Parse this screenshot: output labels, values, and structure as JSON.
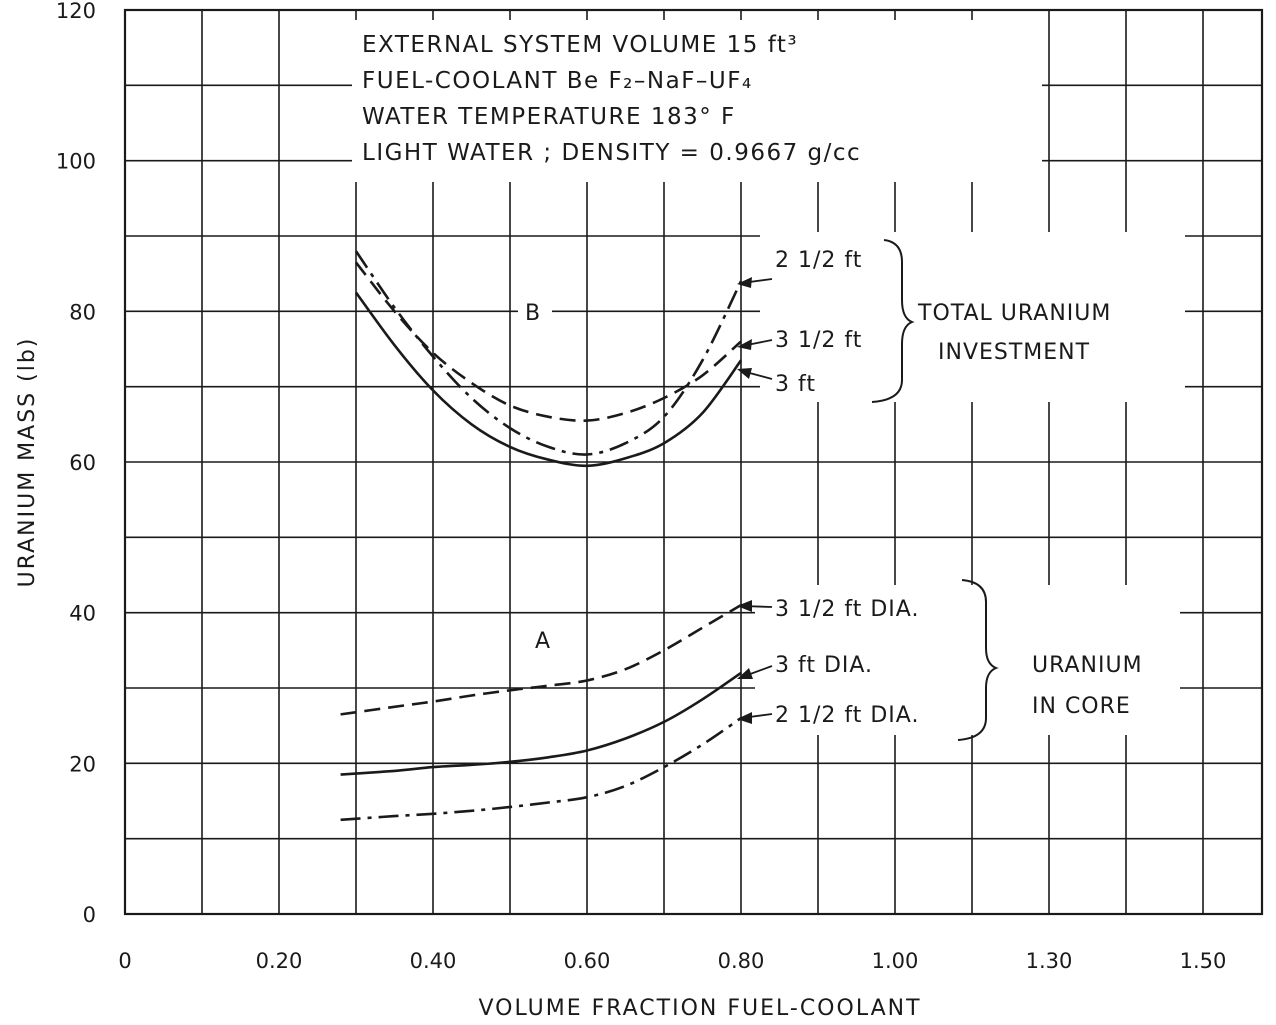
{
  "chart_data": {
    "type": "line",
    "xlabel": "VOLUME FRACTION FUEL-COOLANT",
    "ylabel": "URANIUM MASS (lb)",
    "ylim": [
      0,
      120
    ],
    "yticks": [
      0,
      20,
      40,
      60,
      80,
      100,
      120
    ],
    "xtick_labels": [
      "0",
      "0.20",
      "0.40",
      "0.60",
      "0.80",
      "1.00",
      "1.30",
      "1.50"
    ],
    "grid": true,
    "annotation_lines": [
      "EXTERNAL SYSTEM VOLUME 15 ft³",
      "FUEL-COOLANT Be F₂–NaF–UF₄",
      "WATER TEMPERATURE 183° F",
      "LIGHT WATER ; DENSITY = 0.9667 g/cc"
    ],
    "groups": [
      {
        "letter": "B",
        "label_lines": [
          "TOTAL URANIUM",
          "INVESTMENT"
        ]
      },
      {
        "letter": "A",
        "label_lines": [
          "URANIUM",
          "IN CORE"
        ]
      }
    ],
    "series": [
      {
        "name": "2 1/2 ft",
        "group": "B",
        "style": "dashdot",
        "x": [
          0.3,
          0.35,
          0.4,
          0.45,
          0.5,
          0.55,
          0.6,
          0.65,
          0.7,
          0.75,
          0.8
        ],
        "y": [
          88,
          80.5,
          74,
          68.5,
          64.5,
          62,
          61,
          62.5,
          66,
          73.5,
          84
        ]
      },
      {
        "name": "3 1/2 ft",
        "group": "B",
        "style": "dashed",
        "x": [
          0.3,
          0.35,
          0.4,
          0.45,
          0.5,
          0.55,
          0.6,
          0.65,
          0.7,
          0.75,
          0.8
        ],
        "y": [
          86.5,
          80,
          74.5,
          70.5,
          67.5,
          66,
          65.5,
          66.5,
          68.5,
          71.5,
          76
        ]
      },
      {
        "name": "3 ft",
        "group": "B",
        "style": "solid",
        "x": [
          0.3,
          0.35,
          0.4,
          0.45,
          0.5,
          0.55,
          0.6,
          0.65,
          0.7,
          0.75,
          0.8
        ],
        "y": [
          82.5,
          75.5,
          69.5,
          65,
          62,
          60.3,
          59.5,
          60.5,
          62.5,
          66.5,
          73.5
        ]
      },
      {
        "name": "3 1/2 ft DIA.",
        "group": "A",
        "style": "dashed",
        "x": [
          0.28,
          0.35,
          0.4,
          0.45,
          0.5,
          0.55,
          0.6,
          0.65,
          0.7,
          0.75,
          0.8
        ],
        "y": [
          26.5,
          27.5,
          28.2,
          29,
          29.7,
          30.3,
          31,
          32.5,
          35,
          38,
          41
        ]
      },
      {
        "name": "3 ft DIA.",
        "group": "A",
        "style": "solid",
        "x": [
          0.28,
          0.35,
          0.4,
          0.45,
          0.5,
          0.55,
          0.6,
          0.65,
          0.7,
          0.75,
          0.8
        ],
        "y": [
          18.5,
          19,
          19.5,
          19.8,
          20.2,
          20.8,
          21.7,
          23.3,
          25.5,
          28.5,
          32
        ]
      },
      {
        "name": "2 1/2 ft DIA.",
        "group": "A",
        "style": "dashdot",
        "x": [
          0.28,
          0.35,
          0.4,
          0.45,
          0.5,
          0.55,
          0.6,
          0.65,
          0.7,
          0.75,
          0.8
        ],
        "y": [
          12.5,
          13,
          13.3,
          13.7,
          14.2,
          14.8,
          15.5,
          17,
          19.5,
          22.5,
          26
        ]
      }
    ]
  }
}
